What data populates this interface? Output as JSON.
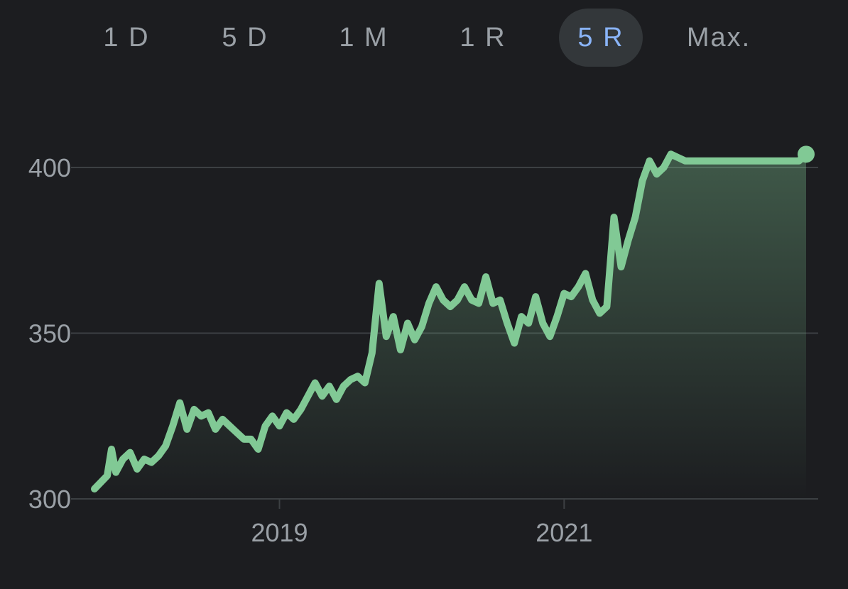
{
  "range_tabs": [
    {
      "label": "1 D",
      "active": false
    },
    {
      "label": "5 D",
      "active": false
    },
    {
      "label": "1 M",
      "active": false
    },
    {
      "label": "1 R",
      "active": false
    },
    {
      "label": "5 R",
      "active": true
    },
    {
      "label": "Max.",
      "active": false
    }
  ],
  "colors": {
    "background": "#1c1d20",
    "line": "#81c995",
    "grid": "#3c4043",
    "tick_text": "#9aa0a6",
    "active_tab_bg": "#33373a",
    "active_tab_text": "#8ab4f8"
  },
  "chart_data": {
    "type": "area",
    "title": "",
    "xlabel": "",
    "ylabel": "",
    "ylim": [
      300,
      400
    ],
    "xlim": [
      2017.7,
      2022.7
    ],
    "y_ticks": [
      {
        "value": 400,
        "label": "400"
      },
      {
        "value": 350,
        "label": "350"
      },
      {
        "value": 300,
        "label": "300"
      }
    ],
    "x_ticks": [
      {
        "value": 2019.0,
        "label": "2019"
      },
      {
        "value": 2021.0,
        "label": "2021"
      }
    ],
    "grid": true,
    "last_point_marker": true,
    "series": [
      {
        "x": [
          2017.7,
          2017.79,
          2017.82,
          2017.85,
          2017.9,
          2017.95,
          2018.0,
          2018.05,
          2018.1,
          2018.15,
          2018.2,
          2018.25,
          2018.3,
          2018.35,
          2018.4,
          2018.45,
          2018.5,
          2018.55,
          2018.6,
          2018.65,
          2018.7,
          2018.75,
          2018.8,
          2018.85,
          2018.9,
          2018.95,
          2019.0,
          2019.05,
          2019.1,
          2019.15,
          2019.2,
          2019.25,
          2019.3,
          2019.35,
          2019.4,
          2019.45,
          2019.5,
          2019.55,
          2019.6,
          2019.65,
          2019.7,
          2019.75,
          2019.8,
          2019.85,
          2019.9,
          2019.95,
          2020.0,
          2020.05,
          2020.1,
          2020.15,
          2020.2,
          2020.25,
          2020.3,
          2020.35,
          2020.4,
          2020.45,
          2020.5,
          2020.55,
          2020.6,
          2020.65,
          2020.7,
          2020.75,
          2020.8,
          2020.85,
          2020.9,
          2020.95,
          2021.0,
          2021.05,
          2021.1,
          2021.15,
          2021.2,
          2021.25,
          2021.3,
          2021.35,
          2021.4,
          2021.45,
          2021.5,
          2021.55,
          2021.6,
          2021.65,
          2021.7,
          2021.75,
          2021.8,
          2021.85,
          2021.9,
          2021.95,
          2022.0,
          2022.05,
          2022.1,
          2022.15,
          2022.2,
          2022.25,
          2022.3,
          2022.35,
          2022.4,
          2022.45,
          2022.5,
          2022.55,
          2022.6,
          2022.65,
          2022.7
        ],
        "values": [
          303,
          307,
          315,
          308,
          312,
          314,
          309,
          312,
          311,
          313,
          316,
          322,
          329,
          321,
          327,
          325,
          326,
          321,
          324,
          322,
          320,
          318,
          318,
          315,
          322,
          325,
          322,
          326,
          324,
          327,
          331,
          335,
          331,
          334,
          330,
          334,
          336,
          337,
          335,
          344,
          365,
          349,
          355,
          345,
          353,
          348,
          352,
          359,
          364,
          360,
          358,
          360,
          364,
          360,
          359,
          367,
          359,
          360,
          353,
          347,
          355,
          353,
          361,
          353,
          349,
          355,
          362,
          361,
          364,
          368,
          360,
          356,
          358,
          385,
          370,
          378,
          385,
          396,
          402,
          398,
          400,
          404,
          403,
          402,
          402,
          402,
          402,
          402,
          402,
          402,
          402,
          402,
          402,
          402,
          402,
          402,
          402,
          402,
          402,
          402,
          404
        ]
      }
    ]
  }
}
